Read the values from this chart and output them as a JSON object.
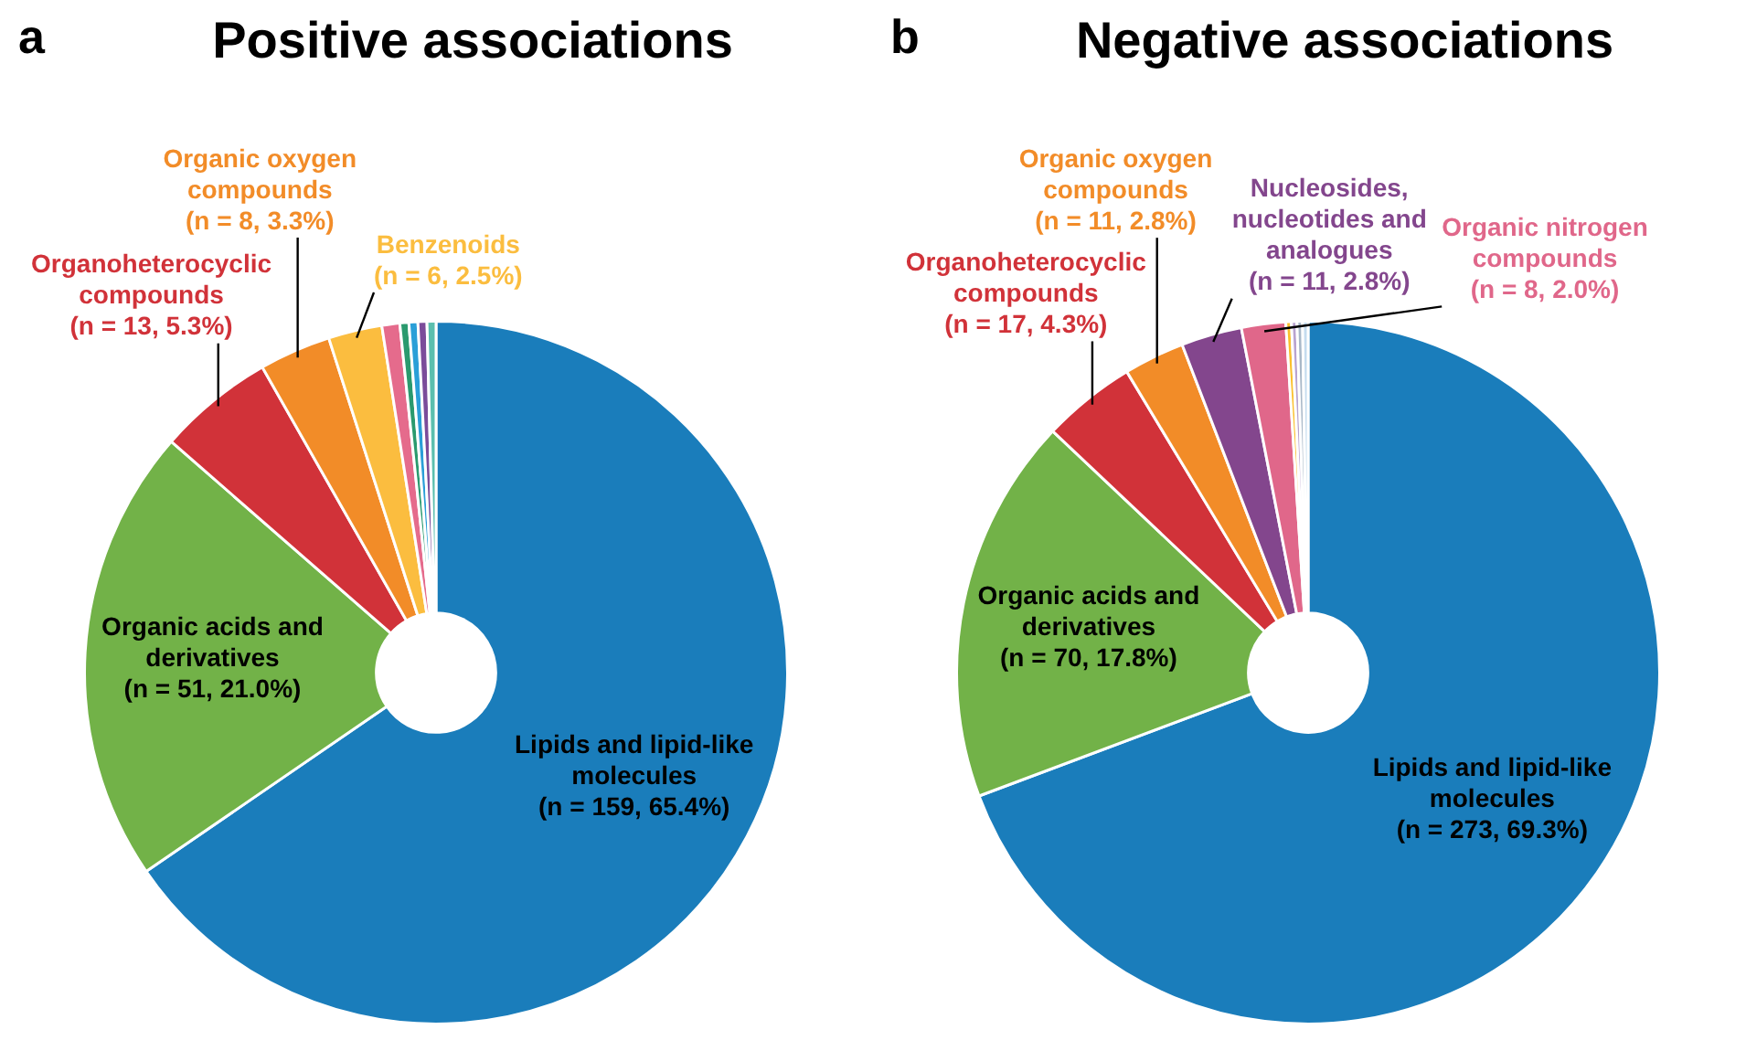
{
  "chart_data": [
    {
      "type": "donut",
      "title": "Positive associations",
      "annotations": [
        "a"
      ],
      "categories": [
        "Lipids and lipid-like molecules",
        "Organic acids and derivatives",
        "Organoheterocyclic compounds",
        "Organic oxygen compounds",
        "Benzenoids",
        null,
        null,
        null,
        null,
        null
      ],
      "values": [
        159,
        51,
        13,
        8,
        6,
        2,
        1,
        1,
        1,
        1
      ],
      "value_labels": [
        "(n = 159, 65.4%)",
        "(n = 51, 21.0%)",
        "(n = 13, 5.3%)",
        "(n = 8, 3.3%)",
        "(n = 6, 2.5%)",
        null,
        null,
        null,
        null,
        null
      ],
      "colors": [
        "#1a7dbb",
        "#72b248",
        "#d13239",
        "#f28c28",
        "#fbbd3f",
        "#e56b8c",
        "#2a9a6e",
        "#2a9fd8",
        "#7b4c9a",
        "#5bbfae"
      ]
    },
    {
      "type": "donut",
      "title": "Negative associations",
      "annotations": [
        "b"
      ],
      "categories": [
        "Lipids and lipid-like molecules",
        "Organic acids and derivatives",
        "Organoheterocyclic compounds",
        "Organic oxygen compounds",
        "Nucleosides, nucleotides and analogues",
        "Organic nitrogen compounds",
        null,
        null,
        null,
        null
      ],
      "values": [
        273,
        70,
        17,
        11,
        11,
        8,
        1,
        1,
        1,
        1
      ],
      "value_labels": [
        "(n = 273, 69.3%)",
        "(n = 70, 17.8%)",
        "(n = 17, 4.3%)",
        "(n = 11, 2.8%)",
        "(n = 11, 2.8%)",
        "(n = 8, 2.0%)",
        null,
        null,
        null,
        null
      ],
      "colors": [
        "#1a7dbb",
        "#72b248",
        "#d13239",
        "#f28c28",
        "#83468d",
        "#e0678a",
        "#fbc02d",
        "#b9a3cf",
        "#a8b8c8",
        "#c5dcef"
      ]
    }
  ]
}
